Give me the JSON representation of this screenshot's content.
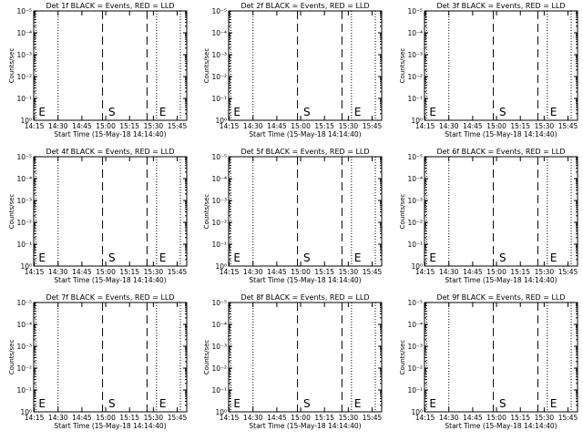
{
  "chart_data": [
    {
      "type": "line",
      "title": "Det 1f BLACK = Events, RED = LLD",
      "xlabel": "Start Time (15-May-18 14:14:40)",
      "ylabel": "Counts/sec",
      "x_ticks": [
        "14:15",
        "14:30",
        "14:45",
        "15:00",
        "15:15",
        "15:30",
        "15:45"
      ],
      "y_ticks": [
        "10⁰",
        "10⁻¹",
        "10⁻²",
        "10⁻³",
        "10⁻⁴",
        "10⁻⁵"
      ],
      "markers": [
        {
          "label": "E",
          "x": "14:16"
        },
        {
          "label": "S",
          "x": "15:00"
        },
        {
          "label": "E",
          "x": "15:32"
        }
      ],
      "dotted_lines": [
        "14:16",
        "14:30",
        "15:32",
        "15:47"
      ],
      "dashed_lines": [
        "14:58",
        "15:26"
      ],
      "series": []
    },
    {
      "type": "line",
      "title": "Det 2f BLACK = Events, RED = LLD",
      "xlabel": "Start Time (15-May-18 14:14:40)",
      "ylabel": "Counts/sec",
      "x_ticks": [
        "14:15",
        "14:30",
        "14:45",
        "15:00",
        "15:15",
        "15:30",
        "15:45"
      ],
      "y_ticks": [
        "10⁰",
        "10⁻¹",
        "10⁻²",
        "10⁻³",
        "10⁻⁴",
        "10⁻⁵"
      ],
      "markers": [
        {
          "label": "E",
          "x": "14:16"
        },
        {
          "label": "S",
          "x": "15:00"
        },
        {
          "label": "E",
          "x": "15:32"
        }
      ],
      "dotted_lines": [
        "14:16",
        "14:30",
        "15:32",
        "15:47"
      ],
      "dashed_lines": [
        "14:58",
        "15:26"
      ],
      "series": []
    },
    {
      "type": "line",
      "title": "Det 3f BLACK = Events, RED = LLD",
      "xlabel": "Start Time (15-May-18 14:14:40)",
      "ylabel": "Counts/sec",
      "x_ticks": [
        "14:15",
        "14:30",
        "14:45",
        "15:00",
        "15:15",
        "15:30",
        "15:45"
      ],
      "y_ticks": [
        "10⁰",
        "10⁻¹",
        "10⁻²",
        "10⁻³",
        "10⁻⁴",
        "10⁻⁵"
      ],
      "markers": [
        {
          "label": "E",
          "x": "14:16"
        },
        {
          "label": "S",
          "x": "15:00"
        },
        {
          "label": "E",
          "x": "15:32"
        }
      ],
      "dotted_lines": [
        "14:16",
        "14:30",
        "15:32",
        "15:47"
      ],
      "dashed_lines": [
        "14:58",
        "15:26"
      ],
      "series": []
    },
    {
      "type": "line",
      "title": "Det 4f BLACK = Events, RED = LLD",
      "xlabel": "Start Time (15-May-18 14:14:40)",
      "ylabel": "Counts/sec",
      "x_ticks": [
        "14:15",
        "14:30",
        "14:45",
        "15:00",
        "15:15",
        "15:30",
        "15:45"
      ],
      "y_ticks": [
        "10⁰",
        "10⁻¹",
        "10⁻²",
        "10⁻³",
        "10⁻⁴",
        "10⁻⁵"
      ],
      "markers": [
        {
          "label": "E",
          "x": "14:16"
        },
        {
          "label": "S",
          "x": "15:00"
        },
        {
          "label": "E",
          "x": "15:32"
        }
      ],
      "dotted_lines": [
        "14:16",
        "14:30",
        "15:32",
        "15:47"
      ],
      "dashed_lines": [
        "14:58",
        "15:26"
      ],
      "series": []
    },
    {
      "type": "line",
      "title": "Det 5f BLACK = Events, RED = LLD",
      "xlabel": "Start Time (15-May-18 14:14:40)",
      "ylabel": "Counts/sec",
      "x_ticks": [
        "14:15",
        "14:30",
        "14:45",
        "15:00",
        "15:15",
        "15:30",
        "15:45"
      ],
      "y_ticks": [
        "10⁰",
        "10⁻¹",
        "10⁻²",
        "10⁻³",
        "10⁻⁴",
        "10⁻⁵"
      ],
      "markers": [
        {
          "label": "E",
          "x": "14:16"
        },
        {
          "label": "S",
          "x": "15:00"
        },
        {
          "label": "E",
          "x": "15:32"
        }
      ],
      "dotted_lines": [
        "14:16",
        "14:30",
        "15:32",
        "15:47"
      ],
      "dashed_lines": [
        "14:58",
        "15:26"
      ],
      "series": []
    },
    {
      "type": "line",
      "title": "Det 6f BLACK = Events, RED = LLD",
      "xlabel": "Start Time (15-May-18 14:14:40)",
      "ylabel": "Counts/sec",
      "x_ticks": [
        "14:15",
        "14:30",
        "14:45",
        "15:00",
        "15:15",
        "15:30",
        "15:45"
      ],
      "y_ticks": [
        "10⁰",
        "10⁻¹",
        "10⁻²",
        "10⁻³",
        "10⁻⁴",
        "10⁻⁵"
      ],
      "markers": [
        {
          "label": "E",
          "x": "14:16"
        },
        {
          "label": "S",
          "x": "15:00"
        },
        {
          "label": "E",
          "x": "15:32"
        }
      ],
      "dotted_lines": [
        "14:16",
        "14:30",
        "15:32",
        "15:47"
      ],
      "dashed_lines": [
        "14:58",
        "15:26"
      ],
      "series": []
    },
    {
      "type": "line",
      "title": "Det 7f BLACK = Events, RED = LLD",
      "xlabel": "Start Time (15-May-18 14:14:40)",
      "ylabel": "Counts/sec",
      "x_ticks": [
        "14:15",
        "14:30",
        "14:45",
        "15:00",
        "15:15",
        "15:30",
        "15:45"
      ],
      "y_ticks": [
        "10⁰",
        "10⁻¹",
        "10⁻²",
        "10⁻³",
        "10⁻⁴",
        "10⁻⁵"
      ],
      "markers": [
        {
          "label": "E",
          "x": "14:16"
        },
        {
          "label": "S",
          "x": "15:00"
        },
        {
          "label": "E",
          "x": "15:32"
        }
      ],
      "dotted_lines": [
        "14:16",
        "14:30",
        "15:32",
        "15:47"
      ],
      "dashed_lines": [
        "14:58",
        "15:26"
      ],
      "series": []
    },
    {
      "type": "line",
      "title": "Det 8f BLACK = Events, RED = LLD",
      "xlabel": "Start Time (15-May-18 14:14:40)",
      "ylabel": "Counts/sec",
      "x_ticks": [
        "14:15",
        "14:30",
        "14:45",
        "15:00",
        "15:15",
        "15:30",
        "15:45"
      ],
      "y_ticks": [
        "10⁰",
        "10⁻¹",
        "10⁻²",
        "10⁻³",
        "10⁻⁴",
        "10⁻⁵"
      ],
      "markers": [
        {
          "label": "E",
          "x": "14:16"
        },
        {
          "label": "S",
          "x": "15:00"
        },
        {
          "label": "E",
          "x": "15:32"
        }
      ],
      "dotted_lines": [
        "14:16",
        "14:30",
        "15:32",
        "15:47"
      ],
      "dashed_lines": [
        "14:58",
        "15:26"
      ],
      "series": []
    },
    {
      "type": "line",
      "title": "Det 9f BLACK = Events, RED = LLD",
      "xlabel": "Start Time (15-May-18 14:14:40)",
      "ylabel": "Counts/sec",
      "x_ticks": [
        "14:15",
        "14:30",
        "14:45",
        "15:00",
        "15:15",
        "15:30",
        "15:45"
      ],
      "y_ticks": [
        "10⁰",
        "10⁻¹",
        "10⁻²",
        "10⁻³",
        "10⁻⁴",
        "10⁻⁵"
      ],
      "markers": [
        {
          "label": "E",
          "x": "14:16"
        },
        {
          "label": "S",
          "x": "15:00"
        },
        {
          "label": "E",
          "x": "15:32"
        }
      ],
      "dotted_lines": [
        "14:16",
        "14:30",
        "15:32",
        "15:47"
      ],
      "dashed_lines": [
        "14:58",
        "15:26"
      ],
      "series": []
    }
  ]
}
